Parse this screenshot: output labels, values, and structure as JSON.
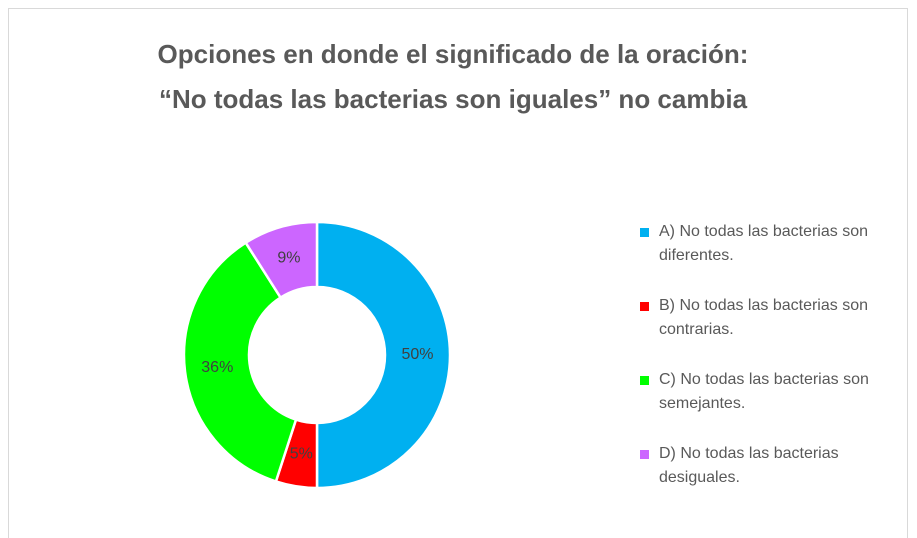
{
  "chart_data": {
    "type": "donut",
    "title": "Opciones en donde el significado de la oración: “No todas las bacterias son iguales” no cambia",
    "categories": [
      "A) No todas las bacterias son diferentes.",
      "B) No todas las bacterias son contrarias.",
      "C) No todas las bacterias son semejantes.",
      "D) No todas las bacterias desiguales."
    ],
    "values": [
      50,
      5,
      36,
      9
    ],
    "value_labels": [
      "50%",
      "5%",
      "36%",
      "9%"
    ],
    "colors": [
      "#00b0f0",
      "#ff0000",
      "#00ff00",
      "#cc66ff"
    ],
    "legend": "right"
  }
}
